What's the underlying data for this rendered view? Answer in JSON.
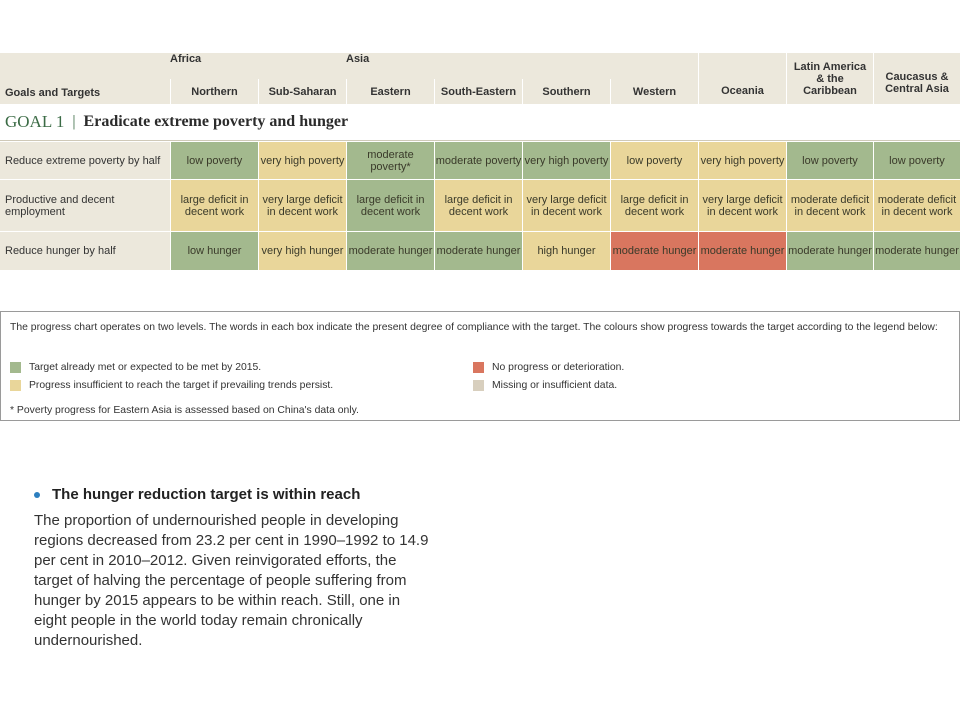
{
  "header": {
    "goals_label": "Goals and Targets",
    "groups": {
      "africa": "Africa",
      "asia": "Asia",
      "oceania": "Oceania",
      "latin_america": "Latin America & the Caribbean",
      "caucasus": "Caucasus & Central Asia"
    },
    "subregions": [
      "Northern",
      "Sub-Saharan",
      "Eastern",
      "South-Eastern",
      "Southern",
      "Western"
    ]
  },
  "goal": {
    "number": "GOAL 1",
    "separator": "|",
    "title": "Eradicate extreme poverty and hunger"
  },
  "rows": [
    {
      "label": "Reduce extreme poverty by half",
      "cells": [
        {
          "text": "low poverty",
          "status": "green"
        },
        {
          "text": "very high poverty",
          "status": "yellow"
        },
        {
          "text": "moderate poverty*",
          "status": "green"
        },
        {
          "text": "moderate poverty",
          "status": "green"
        },
        {
          "text": "very high poverty",
          "status": "green"
        },
        {
          "text": "low poverty",
          "status": "yellow"
        },
        {
          "text": "very high poverty",
          "status": "yellow"
        },
        {
          "text": "low poverty",
          "status": "green"
        },
        {
          "text": "low poverty",
          "status": "green"
        }
      ]
    },
    {
      "label": "Productive and decent employment",
      "cells": [
        {
          "text": "large deficit in decent work",
          "status": "yellow"
        },
        {
          "text": "very large deficit in decent work",
          "status": "yellow"
        },
        {
          "text": "large deficit in decent work",
          "status": "green"
        },
        {
          "text": "large deficit in decent work",
          "status": "yellow"
        },
        {
          "text": "very large deficit in decent work",
          "status": "yellow"
        },
        {
          "text": "large deficit in decent work",
          "status": "yellow"
        },
        {
          "text": "very large deficit in decent work",
          "status": "yellow"
        },
        {
          "text": "moderate deficit in decent work",
          "status": "yellow"
        },
        {
          "text": "moderate deficit in decent work",
          "status": "yellow"
        }
      ]
    },
    {
      "label": "Reduce hunger by half",
      "cells": [
        {
          "text": "low hunger",
          "status": "green"
        },
        {
          "text": "very high hunger",
          "status": "yellow"
        },
        {
          "text": "moderate hunger",
          "status": "green"
        },
        {
          "text": "moderate hunger",
          "status": "green"
        },
        {
          "text": "high hunger",
          "status": "yellow"
        },
        {
          "text": "moderate hunger",
          "status": "red"
        },
        {
          "text": "moderate hunger",
          "status": "red"
        },
        {
          "text": "moderate hunger",
          "status": "green"
        },
        {
          "text": "moderate hunger",
          "status": "green"
        }
      ]
    }
  ],
  "colors": {
    "green": "#a3b98e",
    "yellow": "#e9d69a",
    "red": "#d9765f",
    "grey": "#d8cfbe",
    "header_bg": "#ece8dc",
    "goal_accent": "#3b6b45",
    "bullet": "#2c7fbf"
  },
  "legend": {
    "intro": "The progress chart operates on two levels. The words in each box indicate the present degree of compliance with the target. The colours show progress towards the target according to the legend below:",
    "items": [
      {
        "text": "Target already met or expected to be met by 2015.",
        "swatch": "green"
      },
      {
        "text": "Progress insufficient to reach the target if prevailing trends persist.",
        "swatch": "yellow"
      },
      {
        "text": "No progress or deterioration.",
        "swatch": "red"
      },
      {
        "text": "Missing or insufficient data.",
        "swatch": "grey"
      }
    ],
    "footnote": "* Poverty progress for Eastern Asia is assessed based on China's data only."
  },
  "bullet": {
    "heading": "The hunger reduction target is within reach",
    "body": "The proportion of undernourished people in developing regions decreased from 23.2 per cent in 1990–1992 to 14.9 per cent in 2010–2012. Given reinvigorated efforts, the target of halving the percentage of people suffering from hunger by 2015 appears to be within reach. Still, one in eight people in the world today remain chronically undernourished."
  }
}
